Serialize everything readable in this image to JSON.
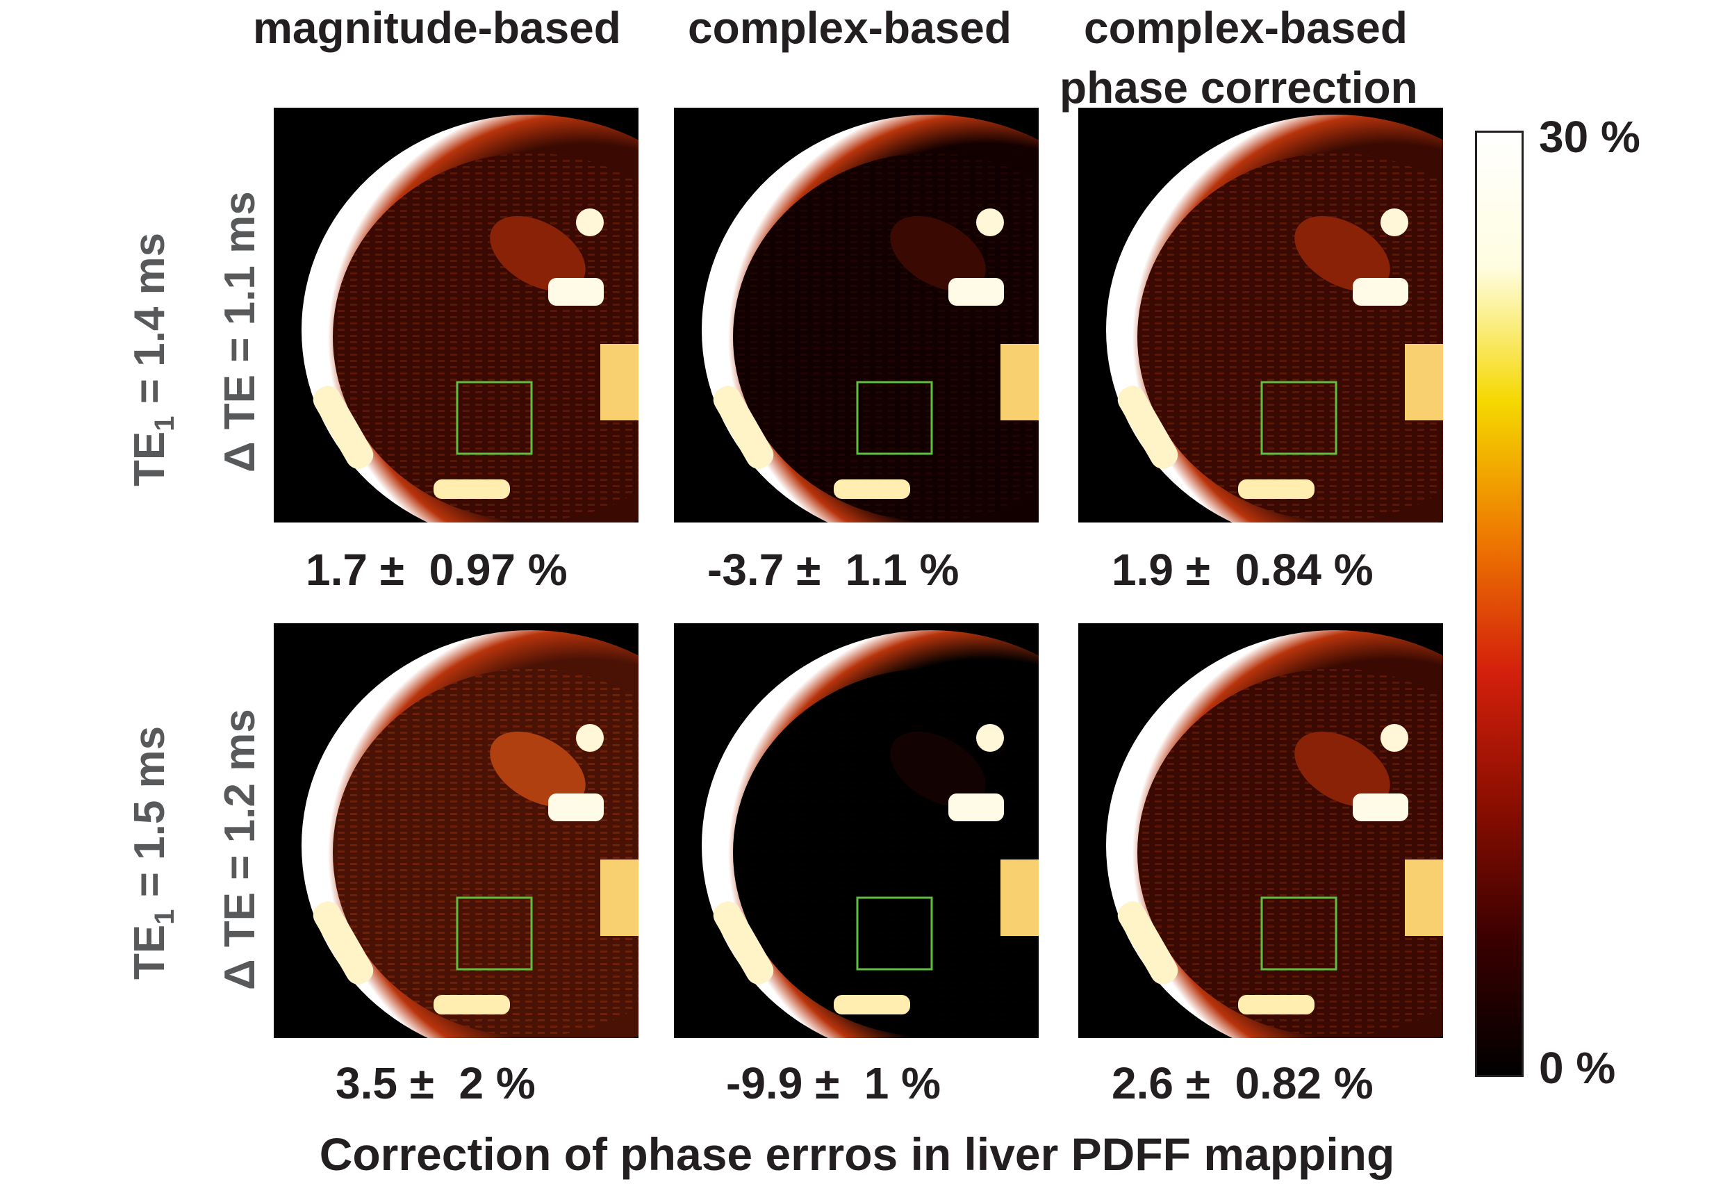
{
  "columns": [
    "magnitude-based",
    "complex-based",
    "complex-based"
  ],
  "column_subtitle": "phase correction",
  "rows": [
    {
      "te1_prefix": "TE",
      "te1_sub": "1",
      "te1_suffix": " = 1.4 ms",
      "dte": "Δ TE = 1.1 ms"
    },
    {
      "te1_prefix": "TE",
      "te1_sub": "1",
      "te1_suffix": " = 1.5 ms",
      "dte": "Δ TE = 1.2 ms"
    }
  ],
  "stats": [
    [
      "1.7 ±  0.97 %",
      "-3.7 ±  1.1 %",
      "1.9 ±  0.84 %"
    ],
    [
      "3.5 ±  2 %",
      "-9.9 ±  1 %",
      "2.6 ±  0.82 %"
    ]
  ],
  "colorbar": {
    "max_label": "30 %",
    "min_label": "0 %",
    "colors": [
      "#000000",
      "#3a0000",
      "#8a0e00",
      "#d4200c",
      "#ee7a00",
      "#f5d800",
      "#fffde0",
      "#ffffff"
    ]
  },
  "footer": "Correction of phase errros in liver PDFF mapping",
  "roi_color": "#5fbf3f"
}
